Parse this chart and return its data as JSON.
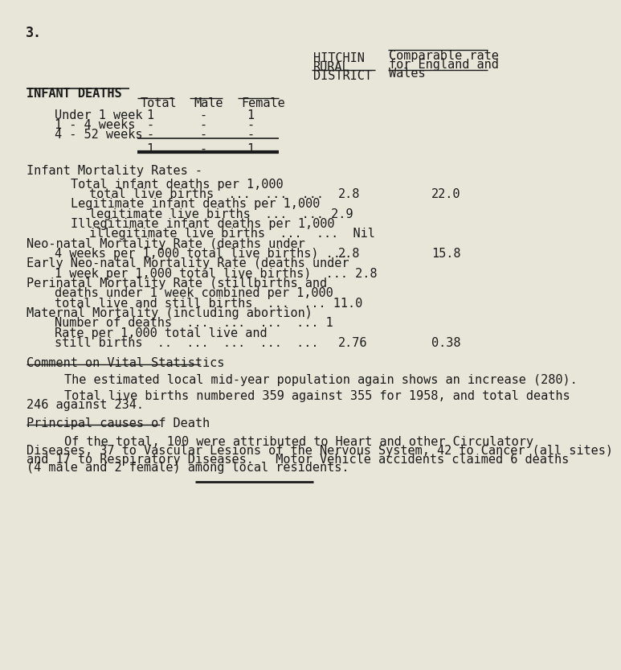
{
  "background_color": "#e8e6d9",
  "page_number": "3.",
  "header_hitchin": "HITCHIN",
  "header_rural": "RURAL",
  "header_district": "DISTRICT",
  "header_comparable": "Comparable rate",
  "header_for_england": "for England and",
  "header_wales": "Wales",
  "section_infant_deaths": "INFANT DEATHS",
  "col_total": "Total",
  "col_male": "Male",
  "col_female": "Female",
  "rows": [
    {
      "label": "Under 1 week",
      "total": "1",
      "male": "-",
      "female": "1"
    },
    {
      "label": "1 - 4 weeks",
      "total": "-",
      "male": "-",
      "female": "-"
    },
    {
      "label": "4 - 52 weeks",
      "total": "-",
      "male": "-",
      "female": "-"
    }
  ],
  "totals_row": {
    "total": "1",
    "male": "-",
    "female": "1"
  },
  "section_imr": "Infant Mortality Rates -",
  "section_comment": "Comment on Vital Statistics",
  "comment_para1": "The estimated local mid-year population again shows an increase (280).",
  "comment_para2_line1": "Total live births numbered 359 against 355 for 1958, and total deaths",
  "comment_para2_line2": "246 against 234.",
  "section_principal": "Principal causes of Death",
  "principal_para_line1": "Of the total, 100 were attributed to Heart and other Circulatory",
  "principal_para_line2": "Diseases, 37 to Vascular Lesions of the Nervous System, 42 to Cancer (all sites)",
  "principal_para_line3": "and 17 to Respiratory Diseases.   Motor Vehicle accidents claimed 6 deaths",
  "principal_para_line4": "(4 male and 2 female) among local residents.",
  "font_size": 11.0,
  "font_family": "monospace",
  "text_color": "#1a1a1a"
}
